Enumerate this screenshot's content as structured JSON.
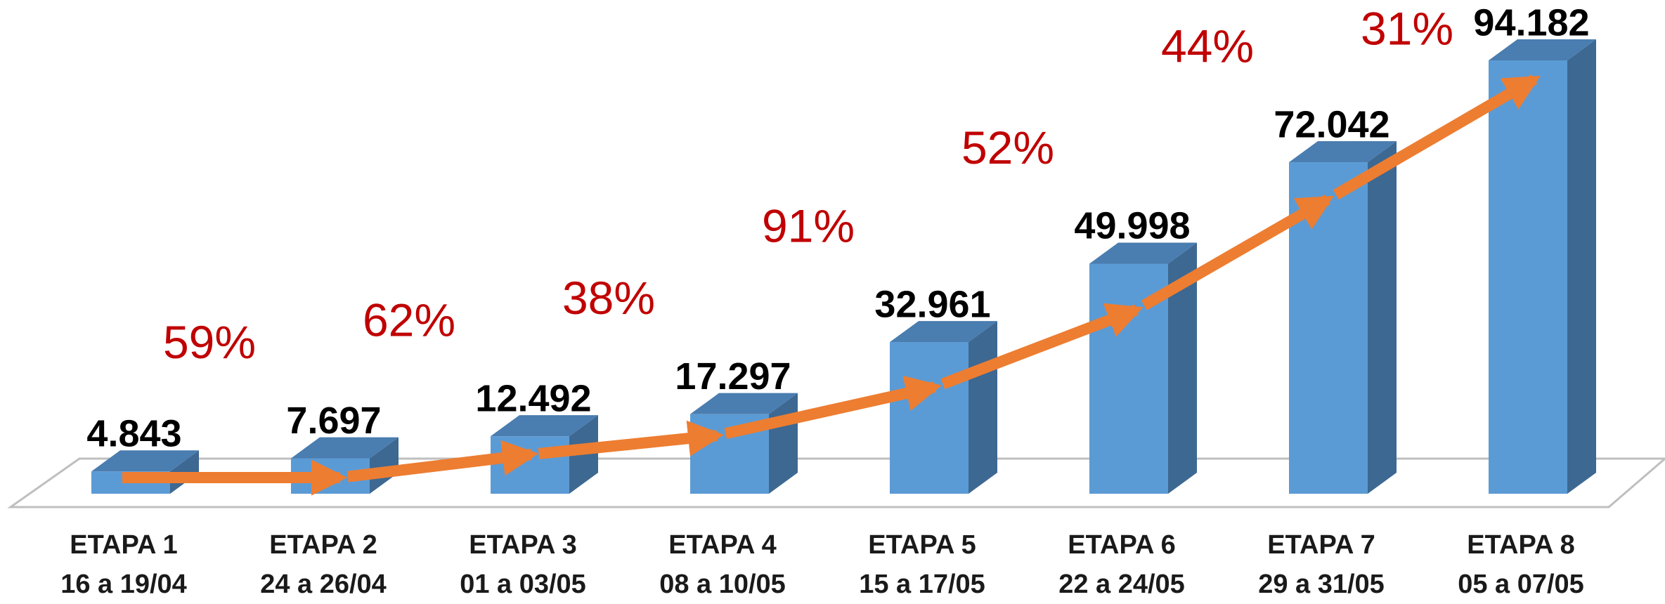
{
  "chart_data": {
    "type": "bar3d",
    "categories": [
      "ETAPA 1",
      "ETAPA 2",
      "ETAPA 3",
      "ETAPA 4",
      "ETAPA 5",
      "ETAPA 6",
      "ETAPA 7",
      "ETAPA 8"
    ],
    "periods": [
      "16 a 19/04",
      "24 a 26/04",
      "01 a 03/05",
      "08 a 10/05",
      "15  a 17/05",
      "22  a 24/05",
      "29  a 31/05",
      "05  a 07/05"
    ],
    "values": [
      4843,
      7697,
      12492,
      17297,
      32961,
      49998,
      72042,
      94182
    ],
    "value_labels": [
      "4.843",
      "7.697",
      "12.492",
      "17.297",
      "32.961",
      "49.998",
      "72.042",
      "94.182"
    ],
    "growth_labels": [
      "59%",
      "62%",
      "38%",
      "91%",
      "52%",
      "44%",
      "31%"
    ],
    "color": "#5b9bd5",
    "arrow_color": "#ed7d31",
    "growth_color": "#c00000"
  }
}
